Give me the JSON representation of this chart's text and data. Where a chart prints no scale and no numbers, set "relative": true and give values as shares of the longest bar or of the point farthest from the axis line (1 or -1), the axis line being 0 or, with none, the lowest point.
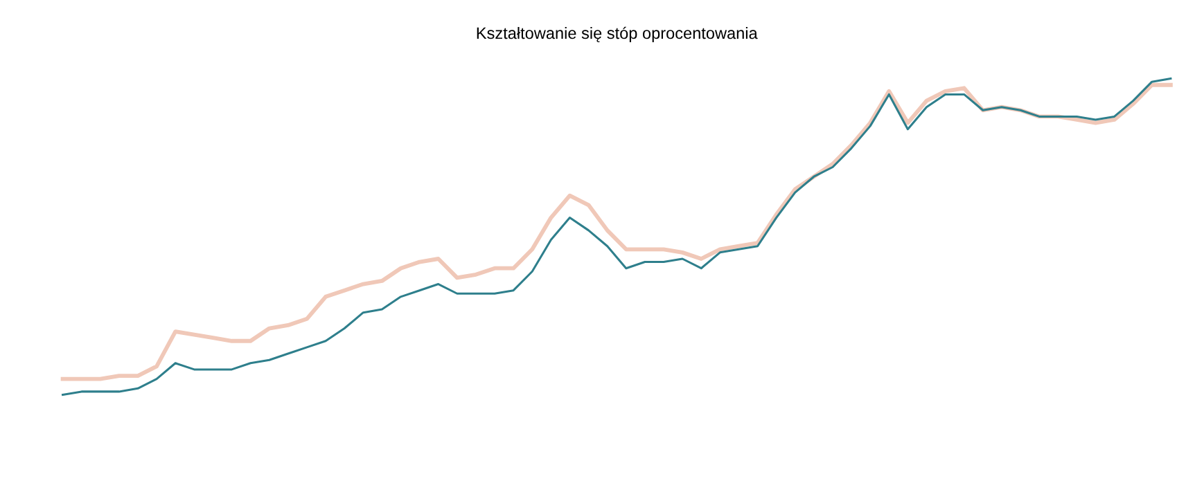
{
  "chart_data": {
    "type": "line",
    "title": "Kształtowanie się stóp oprocentowania",
    "relative": true,
    "categories": [
      null,
      null,
      null,
      null,
      null,
      null,
      null,
      null,
      null,
      null,
      null,
      null,
      null,
      null,
      null,
      null,
      null,
      null,
      null,
      null,
      null,
      null,
      null,
      null,
      null,
      null,
      null,
      null,
      null,
      null,
      null,
      null,
      null,
      null,
      null,
      null,
      null,
      null,
      null,
      null,
      null,
      null,
      null,
      null,
      null,
      null,
      null,
      null,
      null,
      null,
      null,
      null,
      null,
      null,
      null,
      null,
      null,
      null,
      null,
      null
    ],
    "series": [
      {
        "color": "#f0c8b8",
        "values": [
          0.05,
          0.05,
          0.05,
          0.06,
          0.06,
          0.09,
          0.2,
          0.19,
          0.18,
          0.17,
          0.17,
          0.21,
          0.22,
          0.24,
          0.31,
          0.33,
          0.35,
          0.36,
          0.4,
          0.42,
          0.43,
          0.37,
          0.38,
          0.4,
          0.4,
          0.46,
          0.56,
          0.63,
          0.6,
          0.52,
          0.46,
          0.46,
          0.46,
          0.45,
          0.43,
          0.46,
          0.47,
          0.48,
          0.57,
          0.65,
          0.69,
          0.73,
          0.79,
          0.86,
          0.96,
          0.86,
          0.93,
          0.96,
          0.97,
          0.9,
          0.91,
          0.9,
          0.88,
          0.88,
          0.87,
          0.86,
          0.87,
          0.92,
          0.98,
          0.98
        ]
      },
      {
        "color": "#2e7f8c",
        "values": [
          0,
          0.01,
          0.01,
          0.01,
          0.02,
          0.05,
          0.1,
          0.08,
          0.08,
          0.08,
          0.1,
          0.11,
          0.13,
          0.15,
          0.17,
          0.21,
          0.26,
          0.27,
          0.31,
          0.33,
          0.35,
          0.32,
          0.32,
          0.32,
          0.33,
          0.39,
          0.49,
          0.56,
          0.52,
          0.47,
          0.4,
          0.42,
          0.42,
          0.43,
          0.4,
          0.45,
          0.46,
          0.47,
          0.56,
          0.64,
          0.69,
          0.72,
          0.78,
          0.85,
          0.95,
          0.84,
          0.91,
          0.95,
          0.95,
          0.9,
          0.91,
          0.9,
          0.88,
          0.88,
          0.88,
          0.87,
          0.88,
          0.93,
          0.99,
          1
        ]
      }
    ]
  }
}
